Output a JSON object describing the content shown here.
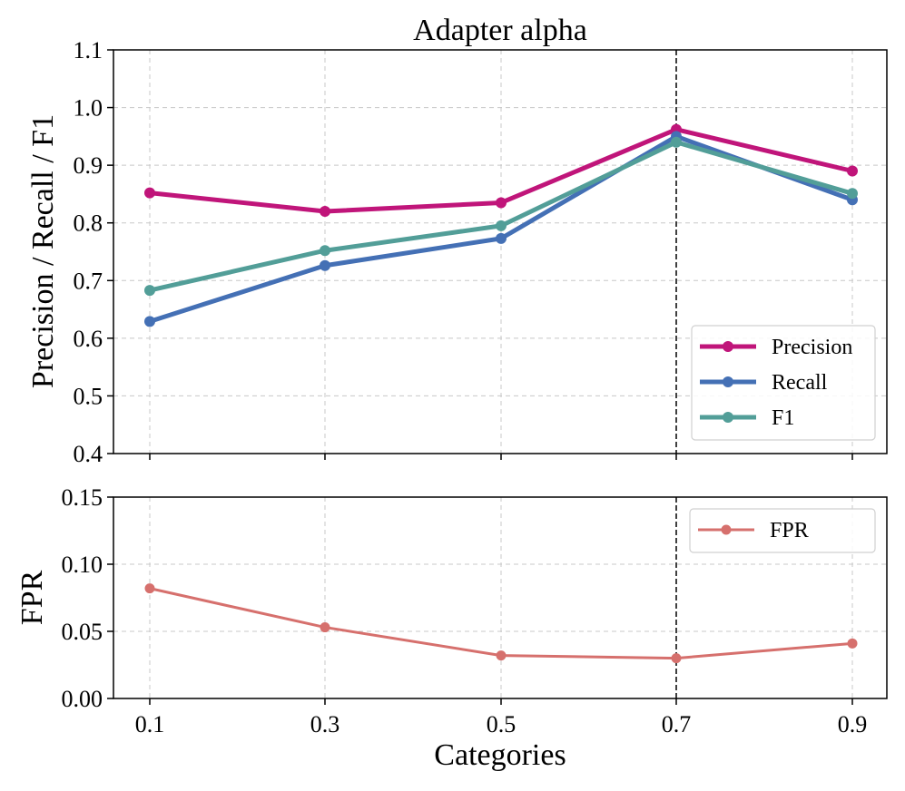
{
  "chart_data": [
    {
      "type": "line",
      "title": "Adapter alpha",
      "xlabel": "",
      "ylabel": "Precision / Recall / F1",
      "categories": [
        "0.1",
        "0.3",
        "0.5",
        "0.7",
        "0.9"
      ],
      "ylim": [
        0.4,
        1.1
      ],
      "yticks": [
        "0.4",
        "0.5",
        "0.6",
        "0.7",
        "0.8",
        "0.9",
        "1.0",
        "1.1"
      ],
      "grid": true,
      "legend_position": "lower right",
      "vline_at": "0.7",
      "series": [
        {
          "name": "Precision",
          "color": "#c0157a",
          "values": [
            0.852,
            0.82,
            0.835,
            0.962,
            0.89
          ]
        },
        {
          "name": "Recall",
          "color": "#4470b5",
          "values": [
            0.629,
            0.726,
            0.773,
            0.95,
            0.84
          ]
        },
        {
          "name": "F1",
          "color": "#529e98",
          "values": [
            0.683,
            0.752,
            0.795,
            0.94,
            0.851
          ]
        }
      ]
    },
    {
      "type": "line",
      "title": "",
      "xlabel": "Categories",
      "ylabel": "FPR",
      "categories": [
        "0.1",
        "0.3",
        "0.5",
        "0.7",
        "0.9"
      ],
      "ylim": [
        0.0,
        0.15
      ],
      "yticks": [
        "0.00",
        "0.05",
        "0.10",
        "0.15"
      ],
      "grid": true,
      "legend_position": "upper right",
      "vline_at": "0.7",
      "series": [
        {
          "name": "FPR",
          "color": "#d6706d",
          "values": [
            0.082,
            0.053,
            0.032,
            0.03,
            0.041
          ]
        }
      ]
    }
  ]
}
